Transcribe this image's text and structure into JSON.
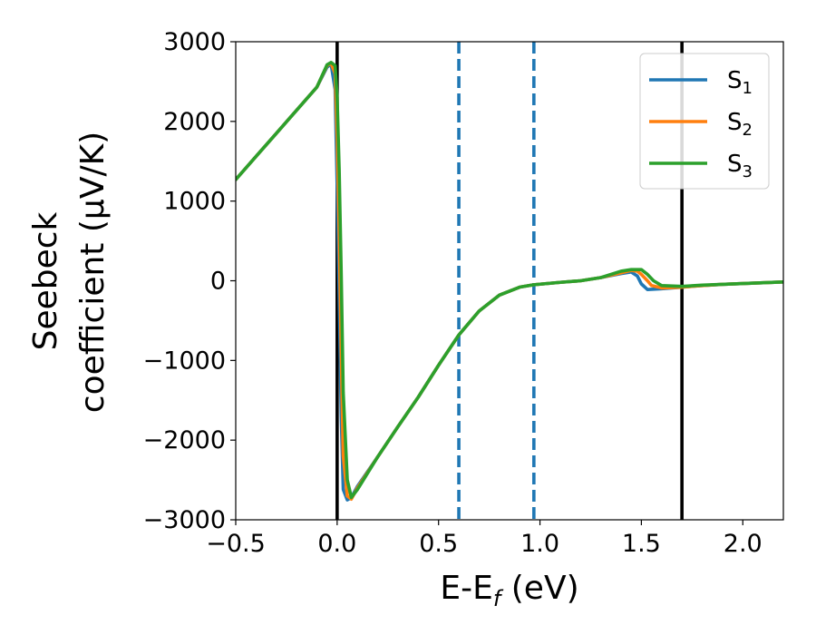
{
  "chart_data": {
    "type": "line",
    "title": "",
    "xlabel": "E-E",
    "xlabel_sub": "f",
    "xlabel_unit": "(eV)",
    "ylabel_line1": "Seebeck",
    "ylabel_line2": "coefficient  (μV/K)",
    "xlim": [
      -0.5,
      2.2
    ],
    "ylim": [
      -3000,
      3000
    ],
    "xticks": [
      -0.5,
      0.0,
      0.5,
      1.0,
      1.5,
      2.0
    ],
    "xtick_labels": [
      "−0.5",
      "0.0",
      "0.5",
      "1.0",
      "1.5",
      "2.0"
    ],
    "yticks": [
      -3000,
      -2000,
      -1000,
      0,
      1000,
      2000,
      3000
    ],
    "ytick_labels": [
      "−3000",
      "−2000",
      "−1000",
      "0",
      "1000",
      "2000",
      "3000"
    ],
    "grid": false,
    "legend_position": "top-right",
    "vertical_lines": [
      {
        "x": 0.0,
        "style": "solid",
        "color": "#000000"
      },
      {
        "x": 0.6,
        "style": "dashed",
        "color": "#1f77b4"
      },
      {
        "x": 0.97,
        "style": "dashed",
        "color": "#1f77b4"
      },
      {
        "x": 1.7,
        "style": "solid",
        "color": "#000000"
      }
    ],
    "series": [
      {
        "name": "S",
        "sub": "1",
        "color": "#1f77b4",
        "x": [
          -0.5,
          -0.4,
          -0.3,
          -0.2,
          -0.1,
          -0.05,
          -0.03,
          -0.01,
          0.0,
          0.01,
          0.02,
          0.03,
          0.05,
          0.07,
          0.1,
          0.2,
          0.3,
          0.4,
          0.5,
          0.6,
          0.7,
          0.8,
          0.9,
          0.97,
          1.1,
          1.2,
          1.3,
          1.4,
          1.45,
          1.48,
          1.5,
          1.53,
          1.6,
          1.7,
          1.8,
          1.9,
          2.0,
          2.1,
          2.2
        ],
        "y": [
          1270,
          1560,
          1850,
          2140,
          2430,
          2680,
          2720,
          2400,
          1200,
          -200,
          -1700,
          -2620,
          -2750,
          -2720,
          -2580,
          -2210,
          -1830,
          -1460,
          -1060,
          -680,
          -380,
          -180,
          -80,
          -50,
          -20,
          0,
          40,
          90,
          110,
          60,
          -40,
          -110,
          -100,
          -80,
          -60,
          -45,
          -35,
          -25,
          -15
        ]
      },
      {
        "name": "S",
        "sub": "2",
        "color": "#ff7f0e",
        "x": [
          -0.5,
          -0.4,
          -0.3,
          -0.2,
          -0.1,
          -0.05,
          -0.03,
          -0.01,
          0.0,
          0.01,
          0.02,
          0.03,
          0.05,
          0.07,
          0.1,
          0.2,
          0.3,
          0.4,
          0.5,
          0.6,
          0.7,
          0.8,
          0.9,
          0.97,
          1.1,
          1.2,
          1.3,
          1.4,
          1.45,
          1.48,
          1.5,
          1.53,
          1.55,
          1.6,
          1.7,
          1.8,
          1.9,
          2.0,
          2.1,
          2.2
        ],
        "y": [
          1270,
          1560,
          1850,
          2140,
          2430,
          2700,
          2730,
          2600,
          1800,
          600,
          -900,
          -2200,
          -2700,
          -2740,
          -2600,
          -2210,
          -1830,
          -1460,
          -1060,
          -680,
          -380,
          -180,
          -80,
          -50,
          -20,
          0,
          40,
          100,
          130,
          120,
          80,
          0,
          -60,
          -90,
          -80,
          -60,
          -45,
          -35,
          -25,
          -15
        ]
      },
      {
        "name": "S",
        "sub": "3",
        "color": "#2ca02c",
        "x": [
          -0.5,
          -0.4,
          -0.3,
          -0.2,
          -0.1,
          -0.05,
          -0.03,
          -0.01,
          0.0,
          0.01,
          0.02,
          0.03,
          0.05,
          0.07,
          0.1,
          0.2,
          0.3,
          0.4,
          0.5,
          0.6,
          0.7,
          0.8,
          0.9,
          0.97,
          1.1,
          1.2,
          1.3,
          1.4,
          1.45,
          1.5,
          1.53,
          1.56,
          1.6,
          1.7,
          1.8,
          1.9,
          2.0,
          2.1,
          2.2
        ],
        "y": [
          1270,
          1560,
          1850,
          2140,
          2430,
          2710,
          2740,
          2700,
          2300,
          1400,
          100,
          -1400,
          -2500,
          -2720,
          -2620,
          -2210,
          -1830,
          -1460,
          -1060,
          -680,
          -380,
          -180,
          -80,
          -50,
          -20,
          0,
          40,
          120,
          140,
          140,
          80,
          0,
          -60,
          -70,
          -55,
          -45,
          -35,
          -25,
          -15
        ]
      }
    ]
  }
}
